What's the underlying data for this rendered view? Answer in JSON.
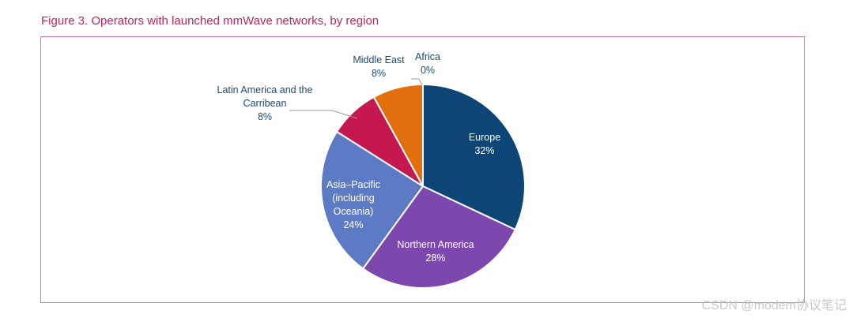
{
  "title": "Figure 3. Operators with launched mmWave networks, by region",
  "watermark": "CSDN @modem协议笔记",
  "chart_data": {
    "type": "pie",
    "title": "Figure 3. Operators with launched mmWave networks, by region",
    "unit": "%",
    "slices": [
      {
        "label": "Europe",
        "label_lines": [
          "Europe"
        ],
        "value": 32,
        "value_label": "32%",
        "color": "#0d4576"
      },
      {
        "label": "Northern America",
        "label_lines": [
          "Northern America"
        ],
        "value": 28,
        "value_label": "28%",
        "color": "#7c48ae"
      },
      {
        "label": "Asia–Pacific (including Oceania)",
        "label_lines": [
          "Asia–Pacific",
          "(including",
          "Oceania)"
        ],
        "value": 24,
        "value_label": "24%",
        "color": "#5d7ac4"
      },
      {
        "label": "Latin America and the Carribean",
        "label_lines": [
          "Latin America and the",
          "Carribean"
        ],
        "value": 8,
        "value_label": "8%",
        "color": "#c4184f"
      },
      {
        "label": "Middle East",
        "label_lines": [
          "Middle East"
        ],
        "value": 8,
        "value_label": "8%",
        "color": "#e2700f"
      },
      {
        "label": "Africa",
        "label_lines": [
          "Africa"
        ],
        "value": 0,
        "value_label": "0%",
        "color": "#9bbb59"
      }
    ]
  }
}
